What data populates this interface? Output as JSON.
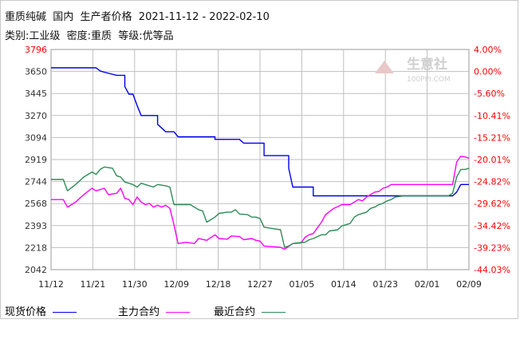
{
  "header": {
    "line1": "重质纯碱  国内  生产者价格  2021-11-12 - 2022-02-10",
    "line2": "类别:工业级  密度:重质  等级:优等品"
  },
  "watermark": {
    "brand": "生意社",
    "url": "100PPI.COM"
  },
  "colors": {
    "spot": "#0000ee",
    "main": "#ff00ff",
    "near": "#2e8b57",
    "left_top_tick": "#ff0000",
    "right_axis": "#ff0000",
    "grid": "#bfbfbf"
  },
  "chart_data": {
    "type": "line",
    "title": "重质纯碱  国内  生产者价格  2021-11-12 - 2022-02-10",
    "subtitle": "类别:工业级  密度:重质  等级:优等品",
    "left_axis": {
      "min": 2042,
      "max": 3796,
      "ticks": [
        "3796",
        "3650",
        "3445",
        "3270",
        "3094",
        "2919",
        "2744",
        "2568",
        "2393",
        "2218",
        "2042"
      ]
    },
    "right_axis": {
      "min": -44.03,
      "max": 4.0,
      "ticks": [
        "4.00%",
        "0.00%",
        "-5.60%",
        "-10.41%",
        "-15.21%",
        "-20.01%",
        "-24.82%",
        "-29.62%",
        "-34.42%",
        "-39.23%",
        "-44.03%"
      ]
    },
    "x_ticks": [
      "11/12",
      "11/21",
      "11/30",
      "12/09",
      "12/18",
      "12/27",
      "01/05",
      "01/14",
      "01/23",
      "02/01",
      "02/09"
    ],
    "grid": true,
    "legend_position": "bottom",
    "series": [
      {
        "name": "现货价格",
        "color": "#0000ee",
        "points": [
          [
            0,
            3650
          ],
          [
            11,
            3650
          ],
          [
            12,
            3625
          ],
          [
            13,
            3615
          ],
          [
            16,
            3590
          ],
          [
            18,
            3590
          ],
          [
            18,
            3500
          ],
          [
            19,
            3440
          ],
          [
            20,
            3440
          ],
          [
            21,
            3350
          ],
          [
            22,
            3270
          ],
          [
            26,
            3270
          ],
          [
            26,
            3200
          ],
          [
            28,
            3140
          ],
          [
            30,
            3140
          ],
          [
            31,
            3100
          ],
          [
            40,
            3100
          ],
          [
            40,
            3080
          ],
          [
            46,
            3080
          ],
          [
            47,
            3050
          ],
          [
            52,
            3050
          ],
          [
            52,
            2950
          ],
          [
            58,
            2950
          ],
          [
            58,
            2850
          ],
          [
            59,
            2700
          ],
          [
            64,
            2700
          ],
          [
            64,
            2630
          ],
          [
            82,
            2630
          ],
          [
            98,
            2630
          ],
          [
            99,
            2660
          ],
          [
            100,
            2720
          ],
          [
            102,
            2720
          ]
        ]
      },
      {
        "name": "主力合约",
        "color": "#ff00ff",
        "points": [
          [
            0,
            2600
          ],
          [
            3,
            2600
          ],
          [
            4,
            2540
          ],
          [
            6,
            2580
          ],
          [
            8,
            2640
          ],
          [
            10,
            2690
          ],
          [
            11,
            2670
          ],
          [
            13,
            2690
          ],
          [
            14,
            2640
          ],
          [
            16,
            2650
          ],
          [
            17,
            2690
          ],
          [
            18,
            2610
          ],
          [
            19,
            2600
          ],
          [
            20,
            2560
          ],
          [
            21,
            2620
          ],
          [
            22,
            2580
          ],
          [
            23,
            2560
          ],
          [
            24,
            2570
          ],
          [
            25,
            2540
          ],
          [
            26,
            2555
          ],
          [
            27,
            2540
          ],
          [
            28,
            2555
          ],
          [
            29,
            2530
          ],
          [
            30,
            2400
          ],
          [
            31,
            2250
          ],
          [
            33,
            2260
          ],
          [
            35,
            2250
          ],
          [
            36,
            2290
          ],
          [
            38,
            2275
          ],
          [
            40,
            2320
          ],
          [
            41,
            2290
          ],
          [
            43,
            2285
          ],
          [
            44,
            2310
          ],
          [
            46,
            2305
          ],
          [
            47,
            2280
          ],
          [
            49,
            2290
          ],
          [
            50,
            2275
          ],
          [
            51,
            2270
          ],
          [
            52,
            2230
          ],
          [
            54,
            2225
          ],
          [
            56,
            2220
          ],
          [
            57,
            2205
          ],
          [
            59,
            2250
          ],
          [
            61,
            2255
          ],
          [
            62,
            2300
          ],
          [
            63,
            2320
          ],
          [
            64,
            2330
          ],
          [
            66,
            2420
          ],
          [
            67,
            2480
          ],
          [
            69,
            2530
          ],
          [
            71,
            2560
          ],
          [
            73,
            2560
          ],
          [
            74,
            2580
          ],
          [
            75,
            2600
          ],
          [
            76,
            2590
          ],
          [
            77,
            2620
          ],
          [
            78,
            2640
          ],
          [
            79,
            2660
          ],
          [
            80,
            2665
          ],
          [
            81,
            2690
          ],
          [
            82,
            2700
          ],
          [
            83,
            2720
          ],
          [
            84,
            2720
          ],
          [
            85,
            2720
          ],
          [
            86,
            2720
          ],
          [
            88,
            2720
          ],
          [
            90,
            2720
          ],
          [
            92,
            2720
          ],
          [
            93,
            2720
          ],
          [
            94,
            2720
          ],
          [
            95,
            2720
          ],
          [
            96,
            2720
          ],
          [
            97,
            2720
          ],
          [
            98,
            2720
          ],
          [
            99,
            2900
          ],
          [
            100,
            2945
          ],
          [
            101,
            2940
          ],
          [
            102,
            2930
          ]
        ]
      },
      {
        "name": "最近合约",
        "color": "#2e8b57",
        "points": [
          [
            0,
            2760
          ],
          [
            3,
            2760
          ],
          [
            4,
            2670
          ],
          [
            6,
            2720
          ],
          [
            8,
            2780
          ],
          [
            10,
            2820
          ],
          [
            11,
            2800
          ],
          [
            12,
            2840
          ],
          [
            13,
            2860
          ],
          [
            15,
            2850
          ],
          [
            16,
            2790
          ],
          [
            17,
            2780
          ],
          [
            18,
            2740
          ],
          [
            20,
            2720
          ],
          [
            21,
            2700
          ],
          [
            22,
            2730
          ],
          [
            24,
            2710
          ],
          [
            25,
            2700
          ],
          [
            26,
            2720
          ],
          [
            27,
            2715
          ],
          [
            28,
            2710
          ],
          [
            29,
            2700
          ],
          [
            30,
            2560
          ],
          [
            32,
            2560
          ],
          [
            34,
            2560
          ],
          [
            35,
            2540
          ],
          [
            36,
            2520
          ],
          [
            37,
            2510
          ],
          [
            38,
            2420
          ],
          [
            39,
            2440
          ],
          [
            40,
            2460
          ],
          [
            41,
            2490
          ],
          [
            43,
            2500
          ],
          [
            44,
            2500
          ],
          [
            45,
            2520
          ],
          [
            46,
            2485
          ],
          [
            48,
            2480
          ],
          [
            49,
            2460
          ],
          [
            50,
            2460
          ],
          [
            51,
            2450
          ],
          [
            52,
            2380
          ],
          [
            54,
            2370
          ],
          [
            56,
            2360
          ],
          [
            57,
            2220
          ],
          [
            58,
            2230
          ],
          [
            59,
            2250
          ],
          [
            60,
            2255
          ],
          [
            62,
            2260
          ],
          [
            63,
            2280
          ],
          [
            64,
            2290
          ],
          [
            66,
            2320
          ],
          [
            67,
            2320
          ],
          [
            68,
            2350
          ],
          [
            70,
            2360
          ],
          [
            71,
            2390
          ],
          [
            72,
            2400
          ],
          [
            73,
            2410
          ],
          [
            74,
            2460
          ],
          [
            75,
            2480
          ],
          [
            77,
            2500
          ],
          [
            78,
            2530
          ],
          [
            79,
            2540
          ],
          [
            80,
            2560
          ],
          [
            81,
            2570
          ],
          [
            82,
            2590
          ],
          [
            83,
            2600
          ],
          [
            84,
            2620
          ],
          [
            86,
            2630
          ],
          [
            88,
            2630
          ],
          [
            90,
            2630
          ],
          [
            92,
            2630
          ],
          [
            94,
            2630
          ],
          [
            96,
            2630
          ],
          [
            97,
            2630
          ],
          [
            98,
            2650
          ],
          [
            99,
            2780
          ],
          [
            100,
            2840
          ],
          [
            101,
            2840
          ],
          [
            102,
            2850
          ]
        ]
      }
    ]
  },
  "legend": {
    "items": [
      {
        "label": "现货价格",
        "color": "#0000ee"
      },
      {
        "label": "主力合约",
        "color": "#ff00ff"
      },
      {
        "label": "最近合约",
        "color": "#2e8b57"
      }
    ]
  }
}
